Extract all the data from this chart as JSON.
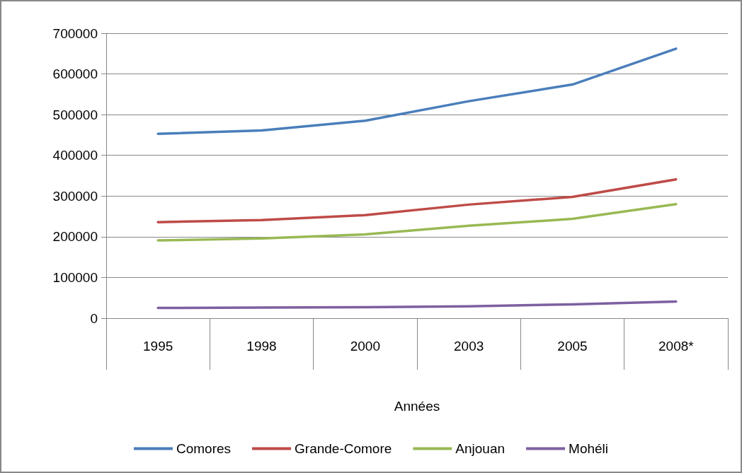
{
  "chart_data": {
    "type": "line",
    "xlabel": "Années",
    "categories": [
      "1995",
      "1998",
      "2000",
      "2003",
      "2005",
      "2008*"
    ],
    "series": [
      {
        "name": "Comores",
        "color": "#4a7ebb",
        "values": [
          453000,
          461000,
          485000,
          533000,
          574000,
          662000
        ]
      },
      {
        "name": "Grande-Comore",
        "color": "#be4b48",
        "values": [
          236000,
          241000,
          253000,
          279000,
          298000,
          341000
        ]
      },
      {
        "name": "Anjouan",
        "color": "#98b954",
        "values": [
          191000,
          196000,
          206000,
          227000,
          244000,
          280000
        ]
      },
      {
        "name": "Mohéli",
        "color": "#7d60a0",
        "values": [
          25000,
          26000,
          27000,
          29000,
          34000,
          41000
        ]
      }
    ],
    "ylim": [
      0,
      700000
    ],
    "yticks": [
      0,
      100000,
      200000,
      300000,
      400000,
      500000,
      600000,
      700000
    ],
    "grid": "y",
    "legend": "bottom",
    "marker": "none",
    "line_style": "solid"
  }
}
